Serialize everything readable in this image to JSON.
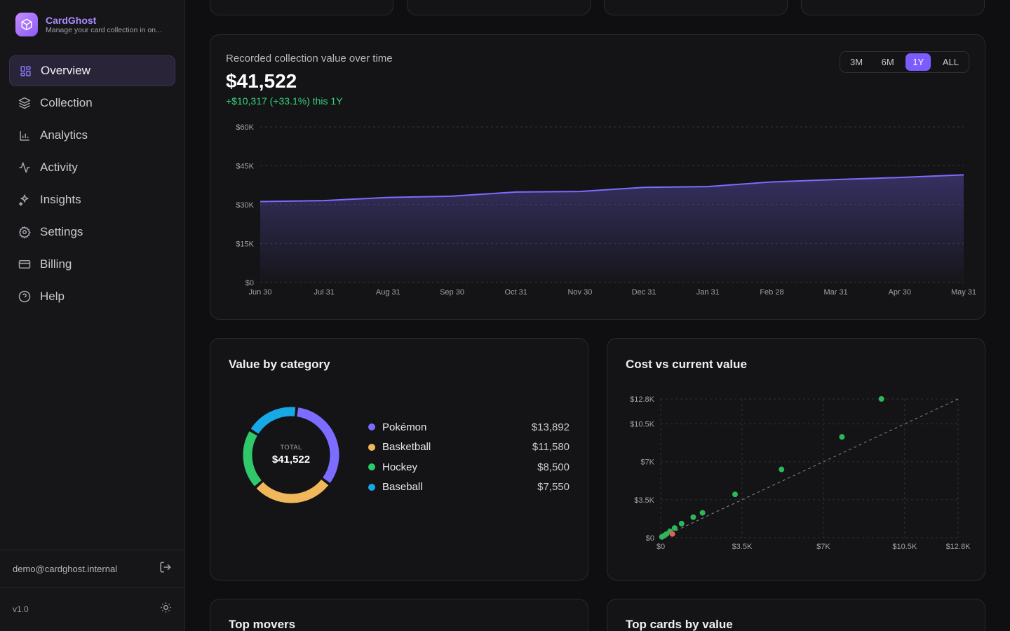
{
  "brand": {
    "name": "CardGhost",
    "subtitle": "Manage your card collection in on..."
  },
  "nav": [
    {
      "label": "Overview",
      "icon": "grid-icon",
      "active": true
    },
    {
      "label": "Collection",
      "icon": "layers-icon",
      "active": false
    },
    {
      "label": "Analytics",
      "icon": "bar-chart-icon",
      "active": false
    },
    {
      "label": "Activity",
      "icon": "activity-icon",
      "active": false
    },
    {
      "label": "Insights",
      "icon": "sparkles-icon",
      "active": false
    },
    {
      "label": "Settings",
      "icon": "gear-icon",
      "active": false
    },
    {
      "label": "Billing",
      "icon": "credit-card-icon",
      "active": false
    },
    {
      "label": "Help",
      "icon": "help-circle-icon",
      "active": false
    }
  ],
  "footer": {
    "email": "demo@cardghost.internal",
    "version": "v1.0"
  },
  "value_chart": {
    "title": "Recorded collection value over time",
    "value": "$41,522",
    "change": "+$10,317 (+33.1%) this 1Y",
    "ranges": [
      "3M",
      "6M",
      "1Y",
      "ALL"
    ],
    "active_range": "1Y"
  },
  "category_card": {
    "title": "Value by category",
    "total_label": "TOTAL",
    "total_value": "$41,522",
    "items": [
      {
        "name": "Pokémon",
        "value": "$13,892",
        "color": "#7c6cff"
      },
      {
        "name": "Basketball",
        "value": "$11,580",
        "color": "#f0b85a"
      },
      {
        "name": "Hockey",
        "value": "$8,500",
        "color": "#2fc96b"
      },
      {
        "name": "Baseball",
        "value": "$7,550",
        "color": "#17a8e6"
      }
    ]
  },
  "scatter_card": {
    "title": "Cost vs current value"
  },
  "bottom_cards": {
    "left_title": "Top movers",
    "right_title": "Top cards by value"
  },
  "chart_data": [
    {
      "type": "area",
      "title": "Recorded collection value over time",
      "x": [
        "Jun 30",
        "Jul 31",
        "Aug 31",
        "Sep 30",
        "Oct 31",
        "Nov 30",
        "Dec 31",
        "Jan 31",
        "Feb 28",
        "Mar 31",
        "Apr 30",
        "May 31"
      ],
      "values": [
        31205,
        31600,
        32800,
        33300,
        34900,
        35100,
        36700,
        37000,
        38800,
        39700,
        40500,
        41522
      ],
      "y_ticks": [
        "$0",
        "$15K",
        "$30K",
        "$45K",
        "$60K"
      ],
      "ylim": [
        0,
        60000
      ],
      "color": "#7c6cff"
    },
    {
      "type": "pie",
      "title": "Value by category",
      "categories": [
        "Pokémon",
        "Basketball",
        "Hockey",
        "Baseball"
      ],
      "values": [
        13892,
        11580,
        8500,
        7550
      ],
      "colors": [
        "#7c6cff",
        "#f0b85a",
        "#2fc96b",
        "#17a8e6"
      ]
    },
    {
      "type": "scatter",
      "title": "Cost vs current value",
      "x_ticks": [
        "$0",
        "$3.5K",
        "$7K",
        "$10.5K",
        "$12.8K"
      ],
      "y_ticks": [
        "$0",
        "$3.5K",
        "$7K",
        "$10.5K",
        "$12.8K"
      ],
      "xlim": [
        0,
        12800
      ],
      "ylim": [
        0,
        12800
      ],
      "points": [
        {
          "x": 9500,
          "y": 12800,
          "gain": true
        },
        {
          "x": 7800,
          "y": 9300,
          "gain": true
        },
        {
          "x": 5200,
          "y": 6300,
          "gain": true
        },
        {
          "x": 3200,
          "y": 4000,
          "gain": true
        },
        {
          "x": 1800,
          "y": 2300,
          "gain": true
        },
        {
          "x": 1400,
          "y": 1900,
          "gain": true
        },
        {
          "x": 900,
          "y": 1300,
          "gain": true
        },
        {
          "x": 600,
          "y": 900,
          "gain": true
        },
        {
          "x": 400,
          "y": 600,
          "gain": true
        },
        {
          "x": 250,
          "y": 350,
          "gain": true
        },
        {
          "x": 500,
          "y": 350,
          "gain": false
        },
        {
          "x": 150,
          "y": 200,
          "gain": true
        },
        {
          "x": 50,
          "y": 80,
          "gain": true
        }
      ],
      "diagonal": true
    }
  ]
}
